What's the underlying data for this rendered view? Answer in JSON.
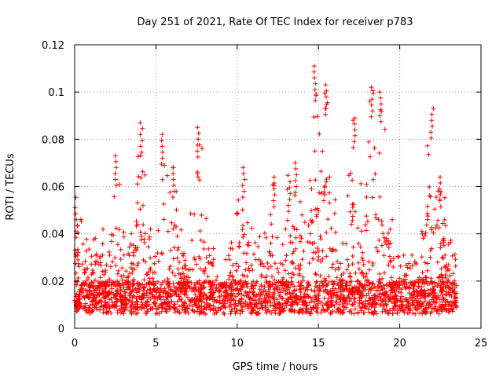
{
  "chart_data": {
    "type": "scatter",
    "title": "Day 251 of 2021, Rate Of TEC Index for receiver p783",
    "xlabel": "GPS time / hours",
    "ylabel": "ROTI / TECUs",
    "xlim": [
      0,
      25
    ],
    "ylim": [
      0,
      0.12
    ],
    "xticks": [
      0,
      5,
      10,
      15,
      20,
      25
    ],
    "xtick_labels": [
      "0",
      "5",
      "10",
      "15",
      "20",
      "25"
    ],
    "yticks": [
      0,
      0.02,
      0.04,
      0.06,
      0.08,
      0.1,
      0.12
    ],
    "ytick_labels": [
      "0",
      "0.02",
      "0.04",
      "0.06",
      "0.08",
      "0.1",
      "0.12"
    ],
    "grid": true,
    "marker": "+",
    "series_color": "#ff0000",
    "data_extent_hours": [
      0,
      23.5
    ],
    "peaks": [
      {
        "x": 0.1,
        "y": 0.051
      },
      {
        "x": 2.5,
        "y": 0.073
      },
      {
        "x": 4.1,
        "y": 0.087
      },
      {
        "x": 5.4,
        "y": 0.082
      },
      {
        "x": 6.1,
        "y": 0.068
      },
      {
        "x": 7.6,
        "y": 0.085
      },
      {
        "x": 10.4,
        "y": 0.068
      },
      {
        "x": 12.3,
        "y": 0.064
      },
      {
        "x": 13.2,
        "y": 0.062
      },
      {
        "x": 13.6,
        "y": 0.07
      },
      {
        "x": 14.8,
        "y": 0.111
      },
      {
        "x": 15.5,
        "y": 0.103
      },
      {
        "x": 17.2,
        "y": 0.089
      },
      {
        "x": 18.3,
        "y": 0.102
      },
      {
        "x": 18.8,
        "y": 0.1
      },
      {
        "x": 22.0,
        "y": 0.093
      },
      {
        "x": 22.5,
        "y": 0.064
      }
    ]
  }
}
